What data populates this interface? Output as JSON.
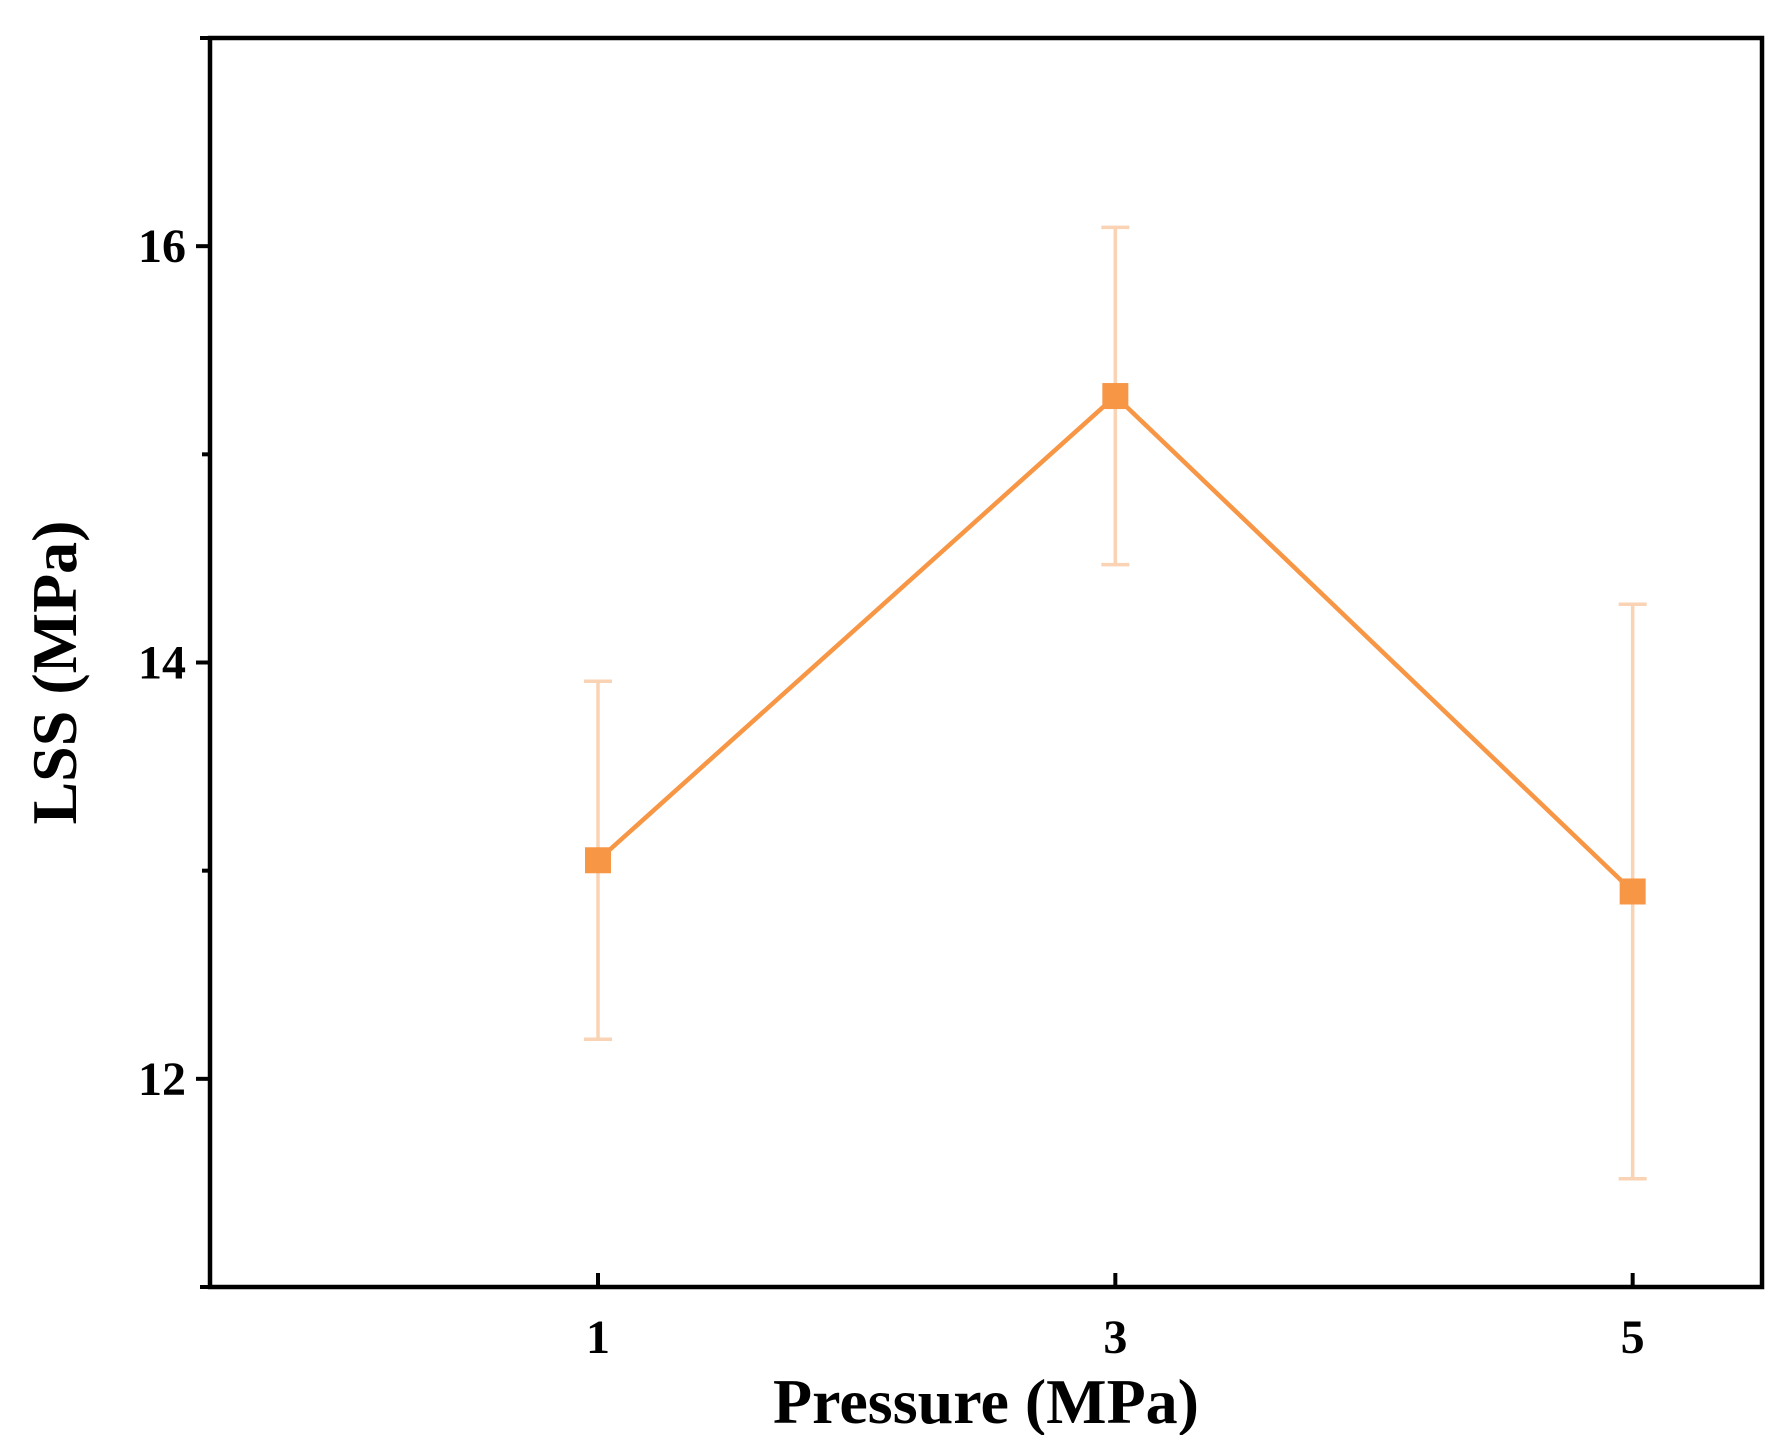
{
  "chart_data": {
    "type": "line",
    "title": "",
    "xlabel": "Pressure (MPa)",
    "ylabel": "LSS (MPa)",
    "xlim": [
      -0.5,
      5.5
    ],
    "ylim": [
      11,
      17
    ],
    "x_ticks": [
      1,
      3,
      5
    ],
    "x_tick_labels": [
      "1",
      "3",
      "5"
    ],
    "y_ticks": [
      12,
      13,
      14,
      15,
      16
    ],
    "y_tick_labels": [
      "12",
      "",
      "14",
      "",
      "16"
    ],
    "grid": false,
    "legend": "none",
    "series": [
      {
        "x": [
          1,
          3,
          5
        ],
        "y": [
          13.05,
          15.28,
          12.9
        ],
        "error_low": [
          12.19,
          14.47,
          11.52
        ],
        "error_high": [
          13.91,
          16.09,
          14.28
        ],
        "color": "#f79645",
        "error_color": "#f9d3b3",
        "marker": "square"
      }
    ]
  }
}
